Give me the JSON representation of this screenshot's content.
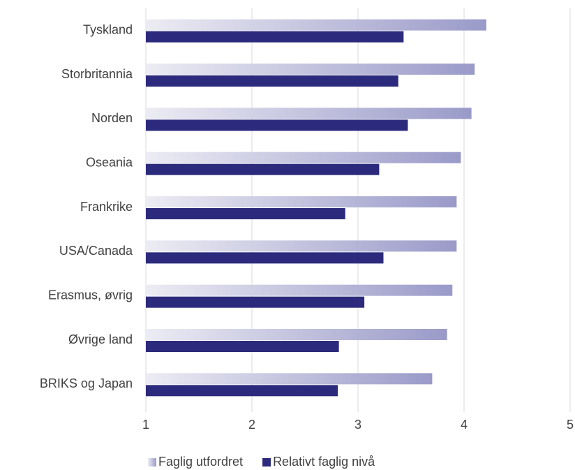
{
  "chart_data": {
    "type": "hbar",
    "categories": [
      "Tyskland",
      "Storbritannia",
      "Norden",
      "Oseania",
      "Frankrike",
      "USA/Canada",
      "Erasmus, øvrig",
      "Øvrige land",
      "BRIKS og Japan"
    ],
    "series": [
      {
        "name": "Faglig utfordret",
        "color": "#9a9ac9",
        "gradient": true,
        "values": [
          4.21,
          4.1,
          4.07,
          3.97,
          3.93,
          3.93,
          3.89,
          3.84,
          3.7
        ]
      },
      {
        "name": "Relativt faglig nivå",
        "color": "#2b2a7c",
        "values": [
          3.43,
          3.38,
          3.47,
          3.2,
          2.88,
          3.24,
          3.06,
          2.82,
          2.81
        ]
      }
    ],
    "xlim": [
      1,
      5
    ],
    "xticks": [
      1,
      2,
      3,
      4,
      5
    ],
    "grid": true,
    "legend": "bottom"
  }
}
